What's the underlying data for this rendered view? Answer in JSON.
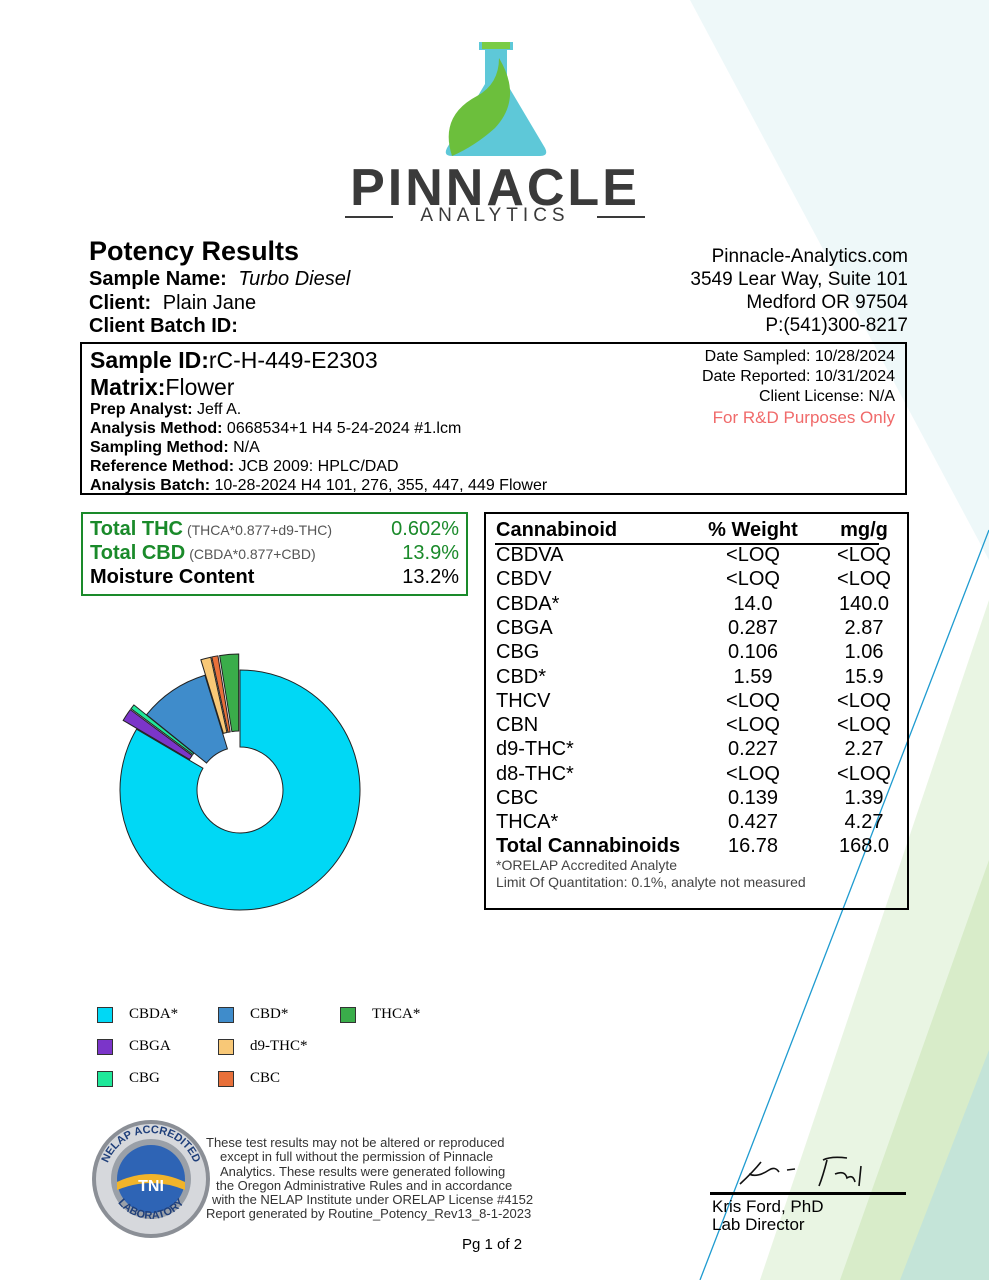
{
  "company": {
    "name": "PINNACLE",
    "tagline": "ANALYTICS",
    "website": "Pinnacle-Analytics.com",
    "address_line1": "3549 Lear Way, Suite 101",
    "address_line2": "Medford OR 97504",
    "phone": "P:(541)300-8217"
  },
  "report": {
    "title": "Potency Results",
    "sample_name_label": "Sample Name:",
    "sample_name": "Turbo Diesel",
    "client_label": "Client:",
    "client": "Plain Jane",
    "client_batch_label": "Client Batch ID:",
    "client_batch": ""
  },
  "sample": {
    "id_label": "Sample ID:",
    "id": "rC-H-449-E2303",
    "matrix_label": "Matrix:",
    "matrix": "Flower",
    "prep_analyst_label": "Prep Analyst:",
    "prep_analyst": "Jeff A.",
    "analysis_method_label": "Analysis Method:",
    "analysis_method": "0668534+1 H4 5-24-2024 #1.lcm",
    "sampling_method_label": "Sampling Method:",
    "sampling_method": "N/A",
    "reference_method_label": "Reference Method:",
    "reference_method": "JCB 2009: HPLC/DAD",
    "analysis_batch_label": "Analysis Batch:",
    "analysis_batch": "10-28-2024 H4 101, 276, 355, 447, 449 Flower",
    "date_sampled": "Date Sampled:  10/28/2024",
    "date_reported": "Date Reported: 10/31/2024",
    "client_license": "Client License: N/A",
    "purpose": "For R&D Purposes Only"
  },
  "totals": [
    {
      "label": "Total THC",
      "formula": "(THCA*0.877+d9-THC)",
      "value": "0.602%"
    },
    {
      "label": "Total CBD",
      "formula": "(CBDA*0.877+CBD)",
      "value": "13.9%"
    },
    {
      "label": "Moisture Content",
      "formula": "",
      "value": "13.2%"
    }
  ],
  "table": {
    "headers": [
      "Cannabinoid",
      "% Weight",
      "mg/g"
    ],
    "rows": [
      [
        "CBDVA",
        "<LOQ",
        "<LOQ"
      ],
      [
        "CBDV",
        "<LOQ",
        "<LOQ"
      ],
      [
        "CBDA*",
        "14.0",
        "140.0"
      ],
      [
        "CBGA",
        "0.287",
        "2.87"
      ],
      [
        "CBG",
        "0.106",
        "1.06"
      ],
      [
        "CBD*",
        "1.59",
        "15.9"
      ],
      [
        "THCV",
        "<LOQ",
        "<LOQ"
      ],
      [
        "CBN",
        "<LOQ",
        "<LOQ"
      ],
      [
        "d9-THC*",
        "0.227",
        "2.27"
      ],
      [
        "d8-THC*",
        "<LOQ",
        "<LOQ"
      ],
      [
        "CBC",
        "0.139",
        "1.39"
      ],
      [
        "THCA*",
        "0.427",
        "4.27"
      ]
    ],
    "total": [
      "Total Cannabinoids",
      "16.78",
      "168.0"
    ],
    "note1": "*ORELAP Accredited Analyte",
    "note2": "Limit Of Quantitation: 0.1%, analyte not measured"
  },
  "chart_data": {
    "type": "pie",
    "donut": true,
    "categories": [
      "CBDA*",
      "CBGA",
      "CBG",
      "CBD*",
      "d9-THC*",
      "CBC",
      "THCA*"
    ],
    "values": [
      14.0,
      0.287,
      0.106,
      1.59,
      0.227,
      0.139,
      0.427
    ],
    "colors": [
      "#00d8f5",
      "#7b35c9",
      "#1fe89a",
      "#3f8ccb",
      "#f8c877",
      "#e8703a",
      "#3aad4a"
    ],
    "exploded": [
      "CBGA",
      "CBG",
      "d9-THC*",
      "CBC",
      "THCA*"
    ],
    "legend": [
      [
        "CBDA*",
        "CBD*",
        "THCA*"
      ],
      [
        "CBGA",
        "d9-THC*"
      ],
      [
        "CBG",
        "CBC"
      ]
    ]
  },
  "disclaimer": [
    "These test results may not be altered or reproduced",
    "except in full without the permission of Pinnacle",
    "Analytics. These results were generated following",
    "the Oregon Administrative Rules and in accordance",
    "with the NELAP Institute under ORELAP License #4152",
    "Report generated by Routine_Potency_Rev13_8-1-2023"
  ],
  "seal": {
    "top_text": "NELAP ACCREDITED",
    "center_text": "TNI",
    "bottom_text": "LABORATORY"
  },
  "signature": {
    "name": "Kris Ford, PhD",
    "title": "Lab Director"
  },
  "page": "Pg 1 of 2"
}
